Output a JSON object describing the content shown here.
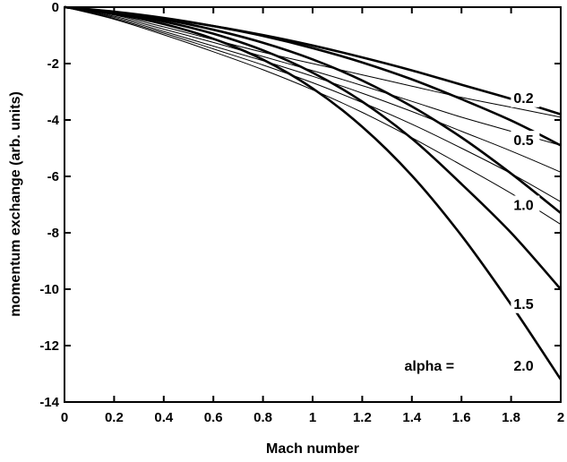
{
  "chart_data": {
    "type": "line",
    "xlabel": "Mach number",
    "ylabel": "momentum exchange (arb. units)",
    "xlim": [
      0,
      2
    ],
    "ylim": [
      -14,
      0
    ],
    "x_ticks": [
      "0",
      "0.2",
      "0.4",
      "0.6",
      "0.8",
      "1",
      "1.2",
      "1.4",
      "1.6",
      "1.8",
      "2"
    ],
    "y_ticks": [
      "0",
      "-2",
      "-4",
      "-6",
      "-8",
      "-10",
      "-12",
      "-14"
    ],
    "grid": false,
    "legend_prefix": "alpha =",
    "x": [
      0,
      0.2,
      0.4,
      0.6,
      0.8,
      1.0,
      1.2,
      1.4,
      1.6,
      1.8,
      2.0
    ],
    "series": [
      {
        "name": "0.2",
        "weight": "bold",
        "values": [
          0,
          -0.17,
          -0.4,
          -0.67,
          -0.99,
          -1.36,
          -1.78,
          -2.24,
          -2.75,
          -3.25,
          -3.8
        ]
      },
      {
        "name": "0.5",
        "weight": "bold",
        "values": [
          0,
          -0.16,
          -0.38,
          -0.67,
          -1.02,
          -1.45,
          -1.96,
          -2.56,
          -3.26,
          -4.02,
          -4.9
        ]
      },
      {
        "name": "1.0",
        "weight": "bold",
        "values": [
          0,
          -0.18,
          -0.44,
          -0.8,
          -1.26,
          -1.85,
          -2.6,
          -3.52,
          -4.62,
          -5.9,
          -7.3
        ]
      },
      {
        "name": "1.5",
        "weight": "bold",
        "values": [
          0,
          -0.21,
          -0.51,
          -0.94,
          -1.53,
          -2.32,
          -3.35,
          -4.66,
          -6.27,
          -8.0,
          -10.0
        ]
      },
      {
        "name": "2.0",
        "weight": "bold",
        "values": [
          0,
          -0.24,
          -0.6,
          -1.12,
          -1.86,
          -2.88,
          -4.24,
          -5.97,
          -8.1,
          -10.55,
          -13.2
        ]
      },
      {
        "weight": "thin",
        "values": [
          0,
          -0.28,
          -0.7,
          -1.15,
          -1.6,
          -2.0,
          -2.4,
          -2.8,
          -3.2,
          -3.55,
          -3.9
        ]
      },
      {
        "weight": "thin",
        "values": [
          0,
          -0.32,
          -0.78,
          -1.25,
          -1.75,
          -2.25,
          -2.78,
          -3.34,
          -3.9,
          -4.4,
          -4.9
        ]
      },
      {
        "weight": "thin",
        "values": [
          0,
          -0.36,
          -0.86,
          -1.38,
          -1.9,
          -2.45,
          -3.05,
          -3.7,
          -4.4,
          -5.1,
          -5.85
        ]
      },
      {
        "weight": "thin",
        "values": [
          0,
          -0.4,
          -0.92,
          -1.48,
          -2.05,
          -2.68,
          -3.38,
          -4.15,
          -5.0,
          -5.9,
          -6.9
        ]
      },
      {
        "weight": "thin",
        "values": [
          0,
          -0.43,
          -0.98,
          -1.58,
          -2.22,
          -2.93,
          -3.73,
          -4.63,
          -5.6,
          -6.6,
          -7.7
        ]
      }
    ],
    "labels": [
      {
        "text": "0.2",
        "x": 1.81,
        "y": -3.2
      },
      {
        "text": "0.5",
        "x": 1.81,
        "y": -4.7
      },
      {
        "text": "1.0",
        "x": 1.81,
        "y": -7.0
      },
      {
        "text": "1.5",
        "x": 1.81,
        "y": -10.5
      },
      {
        "text": "2.0",
        "x": 1.81,
        "y": -12.7
      }
    ],
    "legend_prefix_pos": {
      "x": 1.37,
      "y": -12.7
    }
  }
}
